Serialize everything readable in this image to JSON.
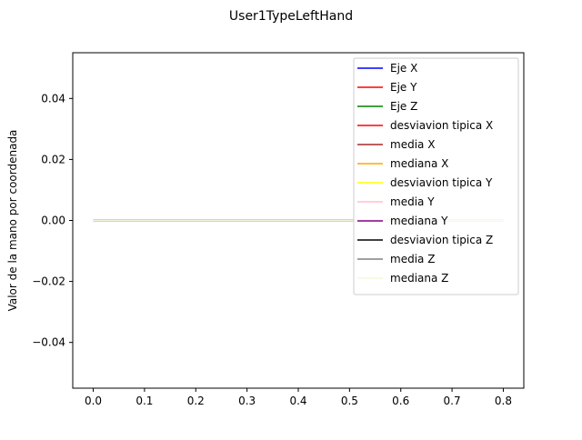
{
  "chart_data": {
    "type": "line",
    "title": "User1TypeLeftHand",
    "xlabel": "",
    "ylabel": "Valor de la mano por coordenada",
    "xlim": [
      -0.04,
      0.84
    ],
    "ylim": [
      -0.055,
      0.055
    ],
    "xticks": [
      0.0,
      0.1,
      0.2,
      0.3,
      0.4,
      0.5,
      0.6,
      0.7,
      0.8
    ],
    "xtick_labels": [
      "0.0",
      "0.1",
      "0.2",
      "0.3",
      "0.4",
      "0.5",
      "0.6",
      "0.7",
      "0.8"
    ],
    "yticks": [
      -0.04,
      -0.02,
      0.0,
      0.02,
      0.04
    ],
    "ytick_labels": [
      "−0.04",
      "−0.02",
      "0.00",
      "0.02",
      "0.04"
    ],
    "grid": false,
    "legend_position": "upper right",
    "x": [
      0.0,
      0.8
    ],
    "series": [
      {
        "name": "Eje X",
        "color": "#0000ff",
        "values": [
          0,
          0
        ]
      },
      {
        "name": "Eje Y",
        "color": "#ff0000",
        "values": [
          0,
          0
        ]
      },
      {
        "name": "Eje Z",
        "color": "#008000",
        "values": [
          0,
          0
        ]
      },
      {
        "name": "desviavion tipica X",
        "color": "#ff0000",
        "values": [
          0,
          0
        ]
      },
      {
        "name": "media X",
        "color": "#a52a2a",
        "values": [
          0,
          0
        ]
      },
      {
        "name": "mediana X",
        "color": "#ffa500",
        "values": [
          0,
          0
        ]
      },
      {
        "name": "desviavion tipica Y",
        "color": "#ffff00",
        "values": [
          0,
          0
        ]
      },
      {
        "name": "media Y",
        "color": "#ffc0cb",
        "values": [
          0,
          0
        ]
      },
      {
        "name": "mediana Y",
        "color": "#800080",
        "values": [
          0,
          0
        ]
      },
      {
        "name": "desviavion tipica Z",
        "color": "#000000",
        "values": [
          0,
          0
        ]
      },
      {
        "name": "media Z",
        "color": "#808080",
        "values": [
          0,
          0
        ]
      },
      {
        "name": "mediana Z",
        "color": "#f5f5dc",
        "values": [
          0,
          0
        ]
      }
    ]
  }
}
